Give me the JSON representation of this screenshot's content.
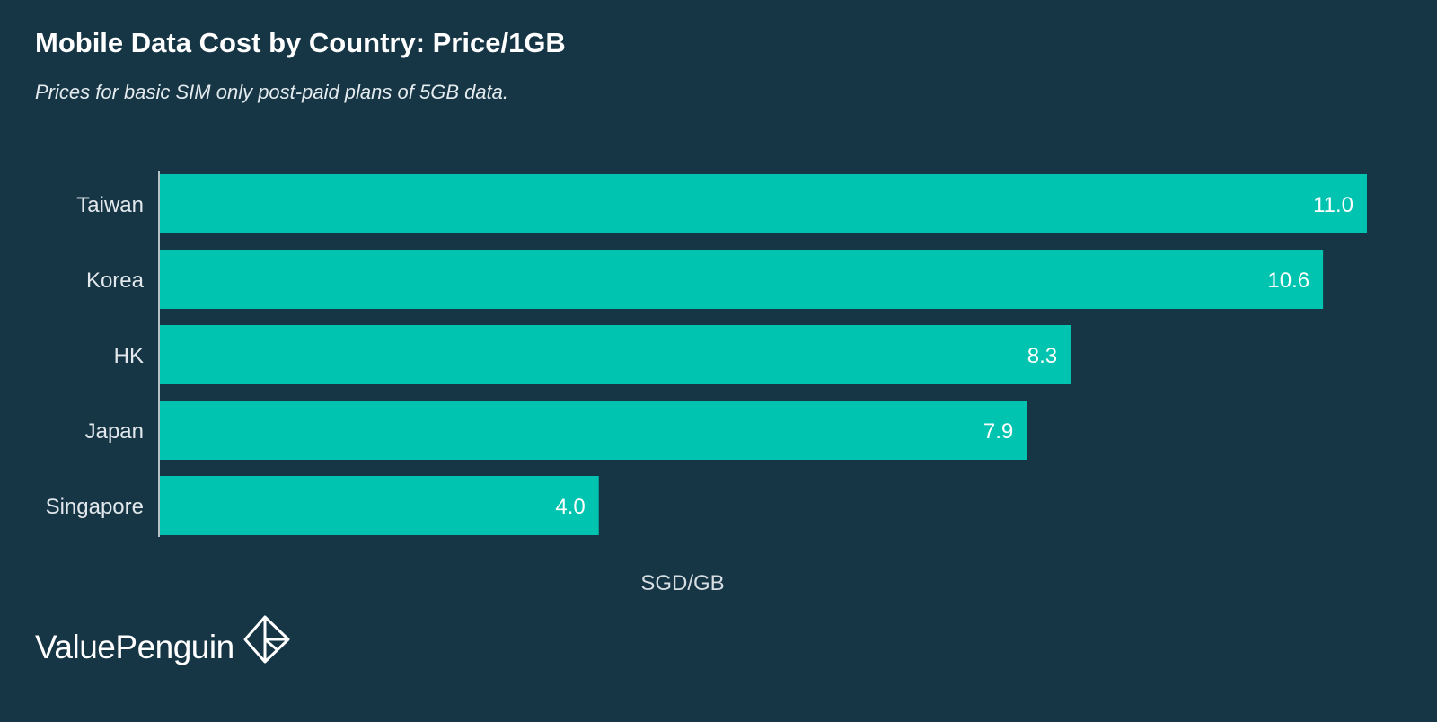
{
  "header": {
    "title": "Mobile Data Cost by Country: Price/1GB",
    "subtitle": "Prices for basic SIM only post-paid plans of 5GB data."
  },
  "brand": {
    "name": "ValuePenguin",
    "icon": "valuepenguin-logo-icon"
  },
  "colors": {
    "background": "#163545",
    "bar": "#00c4b0",
    "axis": "#b8c2c6"
  },
  "chart_data": {
    "type": "bar",
    "orientation": "horizontal",
    "title": "Mobile Data Cost by Country: Price/1GB",
    "subtitle": "Prices for basic SIM only post-paid plans of 5GB data.",
    "xlabel": "SGD/GB",
    "ylabel": "",
    "categories": [
      "Taiwan",
      "Korea",
      "HK",
      "Japan",
      "Singapore"
    ],
    "values": [
      11.0,
      10.6,
      8.3,
      7.9,
      4.0
    ],
    "value_labels": [
      "11.0",
      "10.6",
      "8.3",
      "7.9",
      "4.0"
    ],
    "xlim": [
      0,
      11.0
    ],
    "grid": false,
    "legend": "none",
    "data_labels": "inside-end"
  }
}
